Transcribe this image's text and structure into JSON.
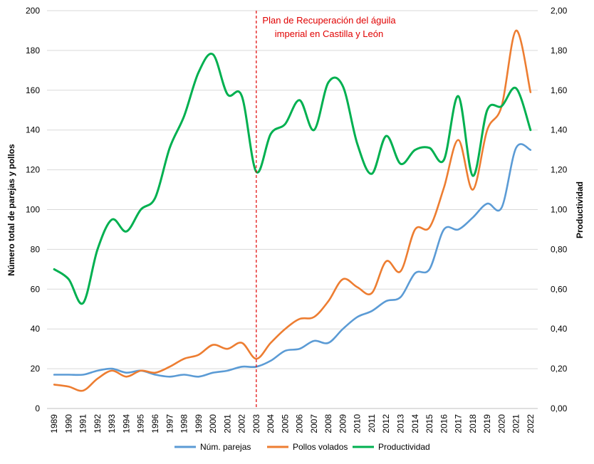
{
  "chart_data": {
    "type": "line",
    "ylabel_left": "Número total de parejas y pollos",
    "ylabel_right": "Productividad",
    "ylim_left": [
      0,
      200
    ],
    "ylim_right": [
      0,
      2
    ],
    "yticks_left": [
      "0",
      "20",
      "40",
      "60",
      "80",
      "100",
      "120",
      "140",
      "160",
      "180",
      "200"
    ],
    "yticks_right": [
      "0,00",
      "0,20",
      "0,40",
      "0,60",
      "0,80",
      "1,00",
      "1,20",
      "1,40",
      "1,60",
      "1,80",
      "2,00"
    ],
    "grid": true,
    "legend_position": "bottom",
    "x": [
      "1989",
      "1990",
      "1991",
      "1992",
      "1993",
      "1994",
      "1995",
      "1996",
      "1997",
      "1998",
      "1999",
      "2000",
      "2001",
      "2002",
      "2003",
      "2004",
      "2005",
      "2006",
      "2007",
      "2008",
      "2009",
      "2010",
      "2011",
      "2012",
      "2013",
      "2014",
      "2015",
      "2016",
      "2017",
      "2018",
      "2019",
      "2020",
      "2021",
      "2022"
    ],
    "series": [
      {
        "name": "Núm. parejas",
        "axis": "left",
        "color": "#5b9bd5",
        "values": [
          17,
          17,
          17,
          19,
          20,
          18,
          19,
          17,
          16,
          17,
          16,
          18,
          19,
          21,
          21,
          24,
          29,
          30,
          34,
          33,
          40,
          46,
          49,
          54,
          56,
          68,
          70,
          90,
          90,
          96,
          103,
          101,
          131,
          130
        ]
      },
      {
        "name": "Pollos volados",
        "axis": "left",
        "color": "#ed7d31",
        "values": [
          12,
          11,
          9,
          15,
          19,
          16,
          19,
          18,
          21,
          25,
          27,
          32,
          30,
          33,
          25,
          33,
          40,
          45,
          46,
          54,
          65,
          61,
          58,
          74,
          69,
          90,
          91,
          111,
          135,
          110,
          140,
          152,
          190,
          159
        ]
      },
      {
        "name": "Productividad",
        "axis": "right",
        "color": "#00b050",
        "values": [
          0.7,
          0.65,
          0.53,
          0.8,
          0.95,
          0.89,
          1.0,
          1.06,
          1.31,
          1.47,
          1.69,
          1.78,
          1.58,
          1.57,
          1.19,
          1.38,
          1.43,
          1.55,
          1.4,
          1.64,
          1.62,
          1.33,
          1.18,
          1.37,
          1.23,
          1.3,
          1.31,
          1.25,
          1.57,
          1.17,
          1.5,
          1.52,
          1.61,
          1.4
        ]
      }
    ],
    "annotation": {
      "x": "2003",
      "color": "#e00000",
      "line1": "Plan de Recuperación del águila",
      "line2": "imperial en Castilla y León"
    }
  }
}
